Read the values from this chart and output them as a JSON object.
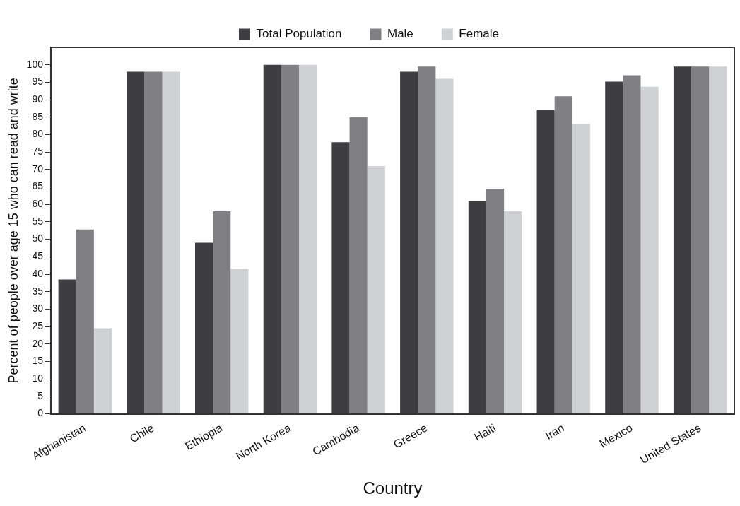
{
  "chart_data": {
    "type": "bar",
    "xlabel": "Country",
    "ylabel": "Percent of people over age 15 who can read and write",
    "categories": [
      "Afghanistan",
      "Chile",
      "Ethiopia",
      "North Korea",
      "Cambodia",
      "Greece",
      "Haiti",
      "Iran",
      "Mexico",
      "United States"
    ],
    "series": [
      {
        "name": "Total Population",
        "color": "#3e3e42",
        "values": [
          38.5,
          98,
          49,
          100,
          77.8,
          98,
          61,
          87,
          95.2,
          99.5
        ]
      },
      {
        "name": "Male",
        "color": "#808084",
        "values": [
          52.8,
          98,
          58,
          100,
          85,
          99.5,
          64.5,
          91,
          97,
          99.5
        ]
      },
      {
        "name": "Female",
        "color": "#d0d1d4",
        "values": [
          24.5,
          98,
          41.5,
          100,
          71,
          96,
          58,
          83,
          93.7,
          99.5
        ]
      }
    ],
    "ylim": [
      0,
      105
    ],
    "yticks": [
      0,
      5,
      10,
      15,
      20,
      25,
      30,
      35,
      40,
      45,
      50,
      55,
      60,
      65,
      70,
      75,
      80,
      85,
      90,
      95,
      100
    ],
    "grid": false,
    "legend": "top"
  }
}
